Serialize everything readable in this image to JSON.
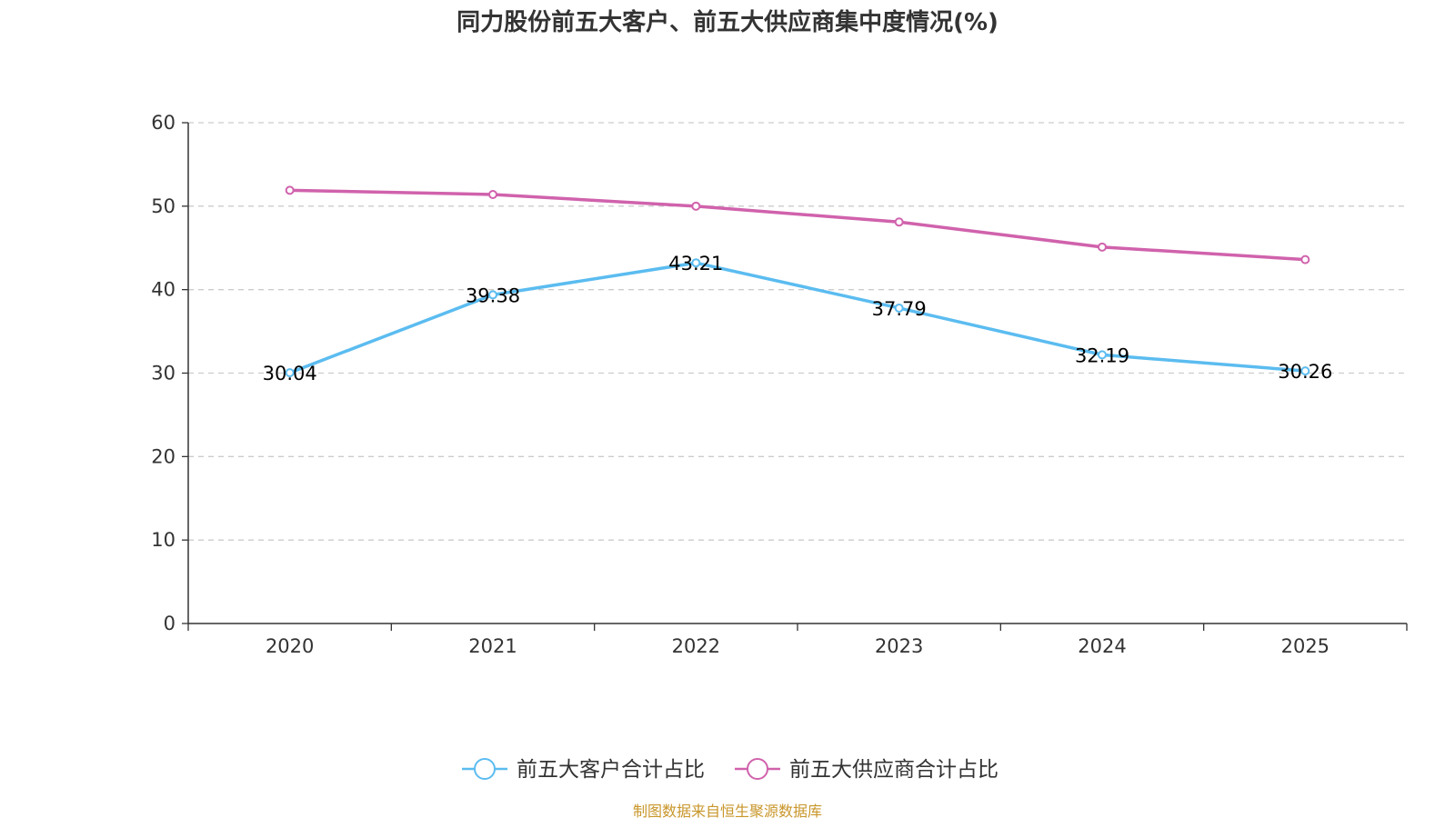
{
  "chart_data": {
    "type": "line",
    "title": "同力股份前五大客户、前五大供应商集中度情况(%)",
    "categories": [
      "2020",
      "2021",
      "2022",
      "2023",
      "2024",
      "2025"
    ],
    "ylim": [
      0,
      60
    ],
    "yticks": [
      0,
      10,
      20,
      30,
      40,
      50,
      60
    ],
    "grid": true,
    "legend_position": "bottom",
    "series": [
      {
        "name": "前五大客户合计占比",
        "color": "#5bbcf0",
        "values": [
          30.04,
          39.38,
          43.21,
          37.79,
          32.19,
          30.26
        ],
        "labels": [
          "30.04",
          "39.38",
          "43.21",
          "37.79",
          "32.19",
          "30.26"
        ]
      },
      {
        "name": "前五大供应商合计占比",
        "color": "#d062ac",
        "values": [
          51.9,
          51.4,
          50.0,
          48.1,
          45.1,
          43.6
        ]
      }
    ]
  },
  "source": {
    "text": "制图数据来自恒生聚源数据库",
    "color": "#c8962a"
  }
}
